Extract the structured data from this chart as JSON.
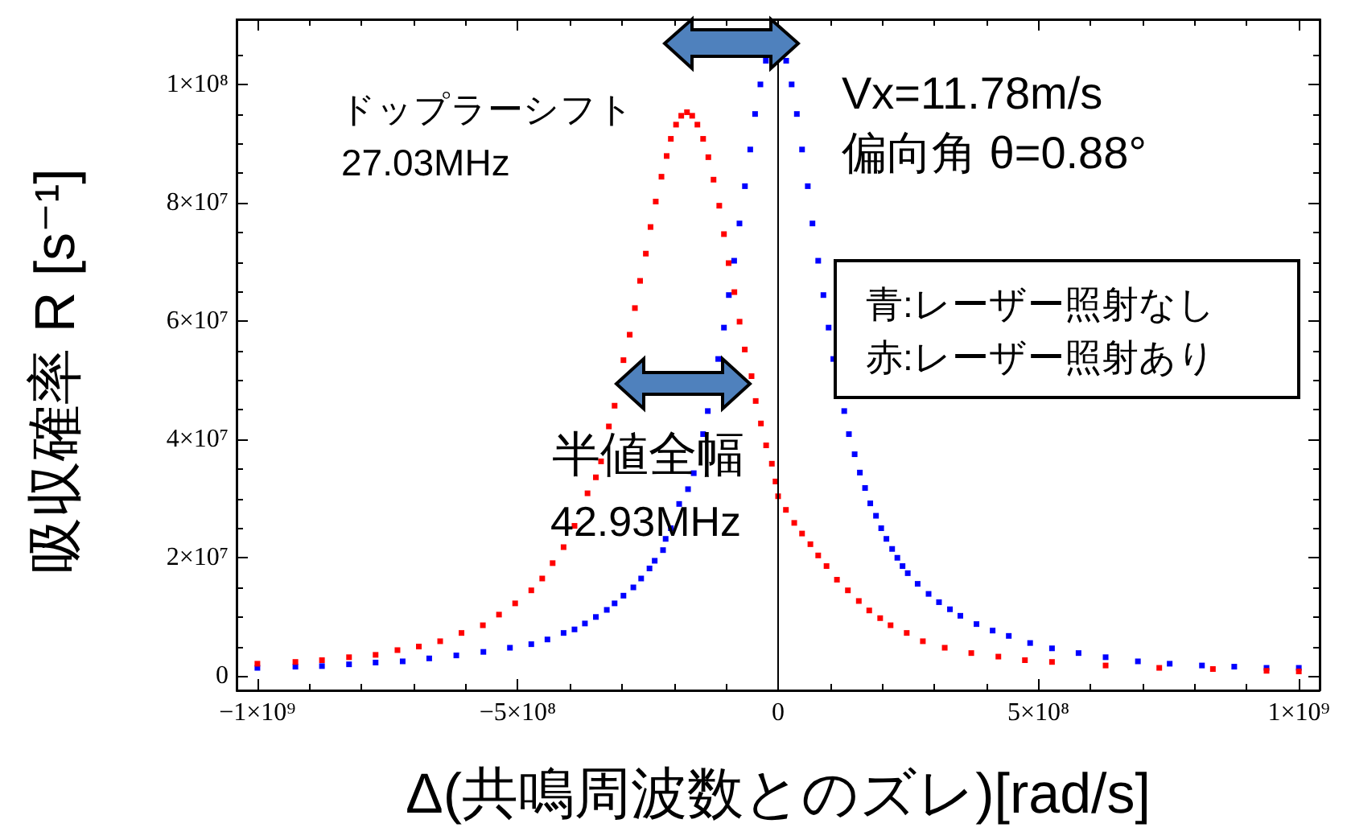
{
  "chart_data": {
    "type": "scatter",
    "xlabel": "Δ(共鳴周波数とのズレ)[rad/s]",
    "ylabel": "吸収確率 R [s⁻¹]",
    "xlim": [
      -1040000000.0,
      1040000000.0
    ],
    "ylim": [
      -2400000.0,
      111000000.0
    ],
    "xticks": [
      {
        "value": -1000000000.0,
        "label": "−1×10⁹"
      },
      {
        "value": -900000000.0,
        "label": null
      },
      {
        "value": -800000000.0,
        "label": null
      },
      {
        "value": -700000000.0,
        "label": null
      },
      {
        "value": -600000000.0,
        "label": null
      },
      {
        "value": -500000000.0,
        "label": "−5×10⁸"
      },
      {
        "value": -400000000.0,
        "label": null
      },
      {
        "value": -300000000.0,
        "label": null
      },
      {
        "value": -200000000.0,
        "label": null
      },
      {
        "value": -100000000.0,
        "label": null
      },
      0,
      {
        "value": 100000000.0,
        "label": null
      },
      {
        "value": 200000000.0,
        "label": null
      },
      {
        "value": 300000000.0,
        "label": null
      },
      {
        "value": 400000000.0,
        "label": null
      },
      {
        "value": 500000000.0,
        "label": "5×10⁸"
      },
      {
        "value": 600000000.0,
        "label": null
      },
      {
        "value": 700000000.0,
        "label": null
      },
      {
        "value": 800000000.0,
        "label": null
      },
      {
        "value": 900000000.0,
        "label": null
      },
      {
        "value": 1000000000.0,
        "label": "1×10⁹"
      }
    ],
    "yticks": [
      0,
      {
        "value": 5000000.0,
        "label": null
      },
      {
        "value": 10000000.0,
        "label": null
      },
      {
        "value": 15000000.0,
        "label": null
      },
      {
        "value": 20000000.0,
        "label": "2×10⁷"
      },
      {
        "value": 25000000.0,
        "label": null
      },
      {
        "value": 30000000.0,
        "label": null
      },
      {
        "value": 35000000.0,
        "label": null
      },
      {
        "value": 40000000.0,
        "label": "4×10⁷"
      },
      {
        "value": 45000000.0,
        "label": null
      },
      {
        "value": 50000000.0,
        "label": null
      },
      {
        "value": 55000000.0,
        "label": null
      },
      {
        "value": 60000000.0,
        "label": "6×10⁷"
      },
      {
        "value": 65000000.0,
        "label": null
      },
      {
        "value": 70000000.0,
        "label": null
      },
      {
        "value": 75000000.0,
        "label": null
      },
      {
        "value": 80000000.0,
        "label": "8×10⁷"
      },
      {
        "value": 85000000.0,
        "label": null
      },
      {
        "value": 90000000.0,
        "label": null
      },
      {
        "value": 95000000.0,
        "label": null
      },
      {
        "value": 100000000.0,
        "label": "1×10⁸"
      },
      {
        "value": 105000000.0,
        "label": null
      }
    ],
    "grid": false,
    "marker": "square",
    "ref_lines": [
      {
        "axis": "x",
        "value": 0
      }
    ],
    "annotations": [
      "ドップラーシフト",
      "27.03MHz",
      "Vx=11.78m/s",
      "偏向角 θ=0.88°",
      "半値全幅",
      "42.93MHz",
      "青:レーザー照射なし",
      "赤:レーザー照射あり"
    ],
    "series": [
      {
        "color": "#0000ff",
        "x": [
          -1000000000.0,
          -927000000.0,
          -876000000.0,
          -824000000.0,
          -773000000.0,
          -721000000.0,
          -670000000.0,
          -618000000.0,
          -566000000.0,
          -515000000.0,
          -474000000.0,
          -443000000.0,
          -412000000.0,
          -391000000.0,
          -371000000.0,
          -350000000.0,
          -329000000.0,
          -314000000.0,
          -297000000.0,
          -278000000.0,
          -263000000.0,
          -247000000.0,
          -237000000.0,
          -221000000.0,
          -216000000.0,
          -206000000.0,
          -190000000.0,
          -173000000.0,
          -162000000.0,
          -144000000.0,
          -135000000.0,
          -115000000.0,
          -104000000.0,
          -94600000.0,
          -84400000.0,
          -74200000.0,
          -63700000.0,
          -53500000.0,
          -44200000.0,
          -34000000.0,
          -23500000.0,
          15500000.0,
          26000000.0,
          36000000.0,
          46000000.0,
          57000000.0,
          66000000.0,
          77000000.0,
          87000000.0,
          97000000.0,
          106000000.0,
          127000000.0,
          136000000.0,
          147000000.0,
          157000000.0,
          167000000.0,
          177000000.0,
          188000000.0,
          198000000.0,
          208000000.0,
          219000000.0,
          229000000.0,
          239000000.0,
          249000000.0,
          268000000.0,
          289000000.0,
          309000000.0,
          330000000.0,
          350000000.0,
          381000000.0,
          412000000.0,
          443000000.0,
          484000000.0,
          526000000.0,
          577000000.0,
          629000000.0,
          691000000.0,
          752000000.0,
          814000000.0,
          876000000.0,
          938000000.0,
          1000000000.0
        ],
        "values": [
          1400000.0,
          1600000.0,
          1700000.0,
          2000000.0,
          2300000.0,
          2500000.0,
          3000000.0,
          3500000.0,
          4100000.0,
          4800000.0,
          5400000.0,
          6200000.0,
          7300000.0,
          7900000.0,
          8900000.0,
          10000000.0,
          11200000.0,
          12300000.0,
          13600000.0,
          15000000.0,
          16500000.0,
          18200000.0,
          19500000.0,
          21300000.0,
          23200000.0,
          25000000.0,
          29100000.0,
          31600000.0,
          34300000.0,
          40900000.0,
          44800000.0,
          53600000.0,
          58900000.0,
          64400000.0,
          70200000.0,
          76500000.0,
          82800000.0,
          89000000.0,
          95000000.0,
          100000000.0,
          104000000.0,
          104000000.0,
          100000000.0,
          95000000.0,
          89000000.0,
          82800000.0,
          76500000.0,
          70200000.0,
          64400000.0,
          58900000.0,
          53600000.0,
          44800000.0,
          40900000.0,
          37500000.0,
          34400000.0,
          31800000.0,
          29200000.0,
          27100000.0,
          25000000.0,
          23200000.0,
          21500000.0,
          20000000.0,
          18600000.0,
          17400000.0,
          15600000.0,
          13900000.0,
          12500000.0,
          11300000.0,
          10200000.0,
          8800000.0,
          7700000.0,
          6800000.0,
          5600000.0,
          4700000.0,
          3900000.0,
          3200000.0,
          2500000.0,
          2100000.0,
          1800000.0,
          1600000.0,
          1400000.0,
          1400000.0
        ]
      },
      {
        "color": "#ff0000",
        "x": [
          -1000000000.0,
          -927000000.0,
          -876000000.0,
          -824000000.0,
          -773000000.0,
          -731000000.0,
          -690000000.0,
          -649000000.0,
          -608000000.0,
          -567000000.0,
          -536000000.0,
          -505000000.0,
          -474000000.0,
          -453000000.0,
          -433000000.0,
          -412000000.0,
          -391000000.0,
          -366000000.0,
          -350000000.0,
          -340000000.0,
          -325000000.0,
          -314000000.0,
          -297000000.0,
          -285000000.0,
          -275000000.0,
          -265000000.0,
          -254000000.0,
          -245000000.0,
          -235000000.0,
          -224000000.0,
          -214000000.0,
          -206000000.0,
          -196000000.0,
          -186000000.0,
          -175000000.0,
          -165000000.0,
          -155000000.0,
          -144000000.0,
          -134000000.0,
          -124000000.0,
          -113000000.0,
          -104000000.0,
          -95000000.0,
          -84000000.0,
          -74000000.0,
          -64000000.0,
          -51000000.0,
          -43000000.0,
          -33000000.0,
          -23000000.0,
          -12000000.0,
          -5000000.0,
          0,
          15000000.0,
          31000000.0,
          46000000.0,
          62000000.0,
          77000000.0,
          93000000.0,
          113000000.0,
          134000000.0,
          155000000.0,
          175000000.0,
          196000000.0,
          216000000.0,
          247000000.0,
          278000000.0,
          320000000.0,
          371000000.0,
          423000000.0,
          474000000.0,
          526000000.0,
          629000000.0,
          732000000.0,
          835000000.0,
          938000000.0,
          1000000000.0
        ],
        "values": [
          2100000.0,
          2400000.0,
          2700000.0,
          3200000.0,
          3600000.0,
          4400000.0,
          5000000.0,
          5900000.0,
          7300000.0,
          8600000.0,
          10400000.0,
          12300000.0,
          14500000.0,
          16500000.0,
          19100000.0,
          21800000.0,
          25400000.0,
          30900000.0,
          33600000.0,
          36300000.0,
          42200000.0,
          45700000.0,
          53400000.0,
          57700000.0,
          62200000.0,
          66800000.0,
          71400000.0,
          75900000.0,
          80200000.0,
          84400000.0,
          87900000.0,
          90800000.0,
          93200000.0,
          94700000.0,
          95300000.0,
          94700000.0,
          93200000.0,
          90800000.0,
          87700000.0,
          83900000.0,
          79500000.0,
          74700000.0,
          69800000.0,
          64900000.0,
          59900000.0,
          55200000.0,
          50700000.0,
          46500000.0,
          42700000.0,
          39000000.0,
          35900000.0,
          32900000.0,
          30400000.0,
          28100000.0,
          25900000.0,
          24100000.0,
          22300000.0,
          20400000.0,
          18600000.0,
          16300000.0,
          14500000.0,
          12700000.0,
          11100000.0,
          9800000.0,
          8600000.0,
          7300000.0,
          5900000.0,
          4800000.0,
          3900000.0,
          3300000.0,
          2700000.0,
          2400000.0,
          1800000.0,
          1400000.0,
          1200000.0,
          900000.0,
          800000.0
        ]
      }
    ]
  }
}
